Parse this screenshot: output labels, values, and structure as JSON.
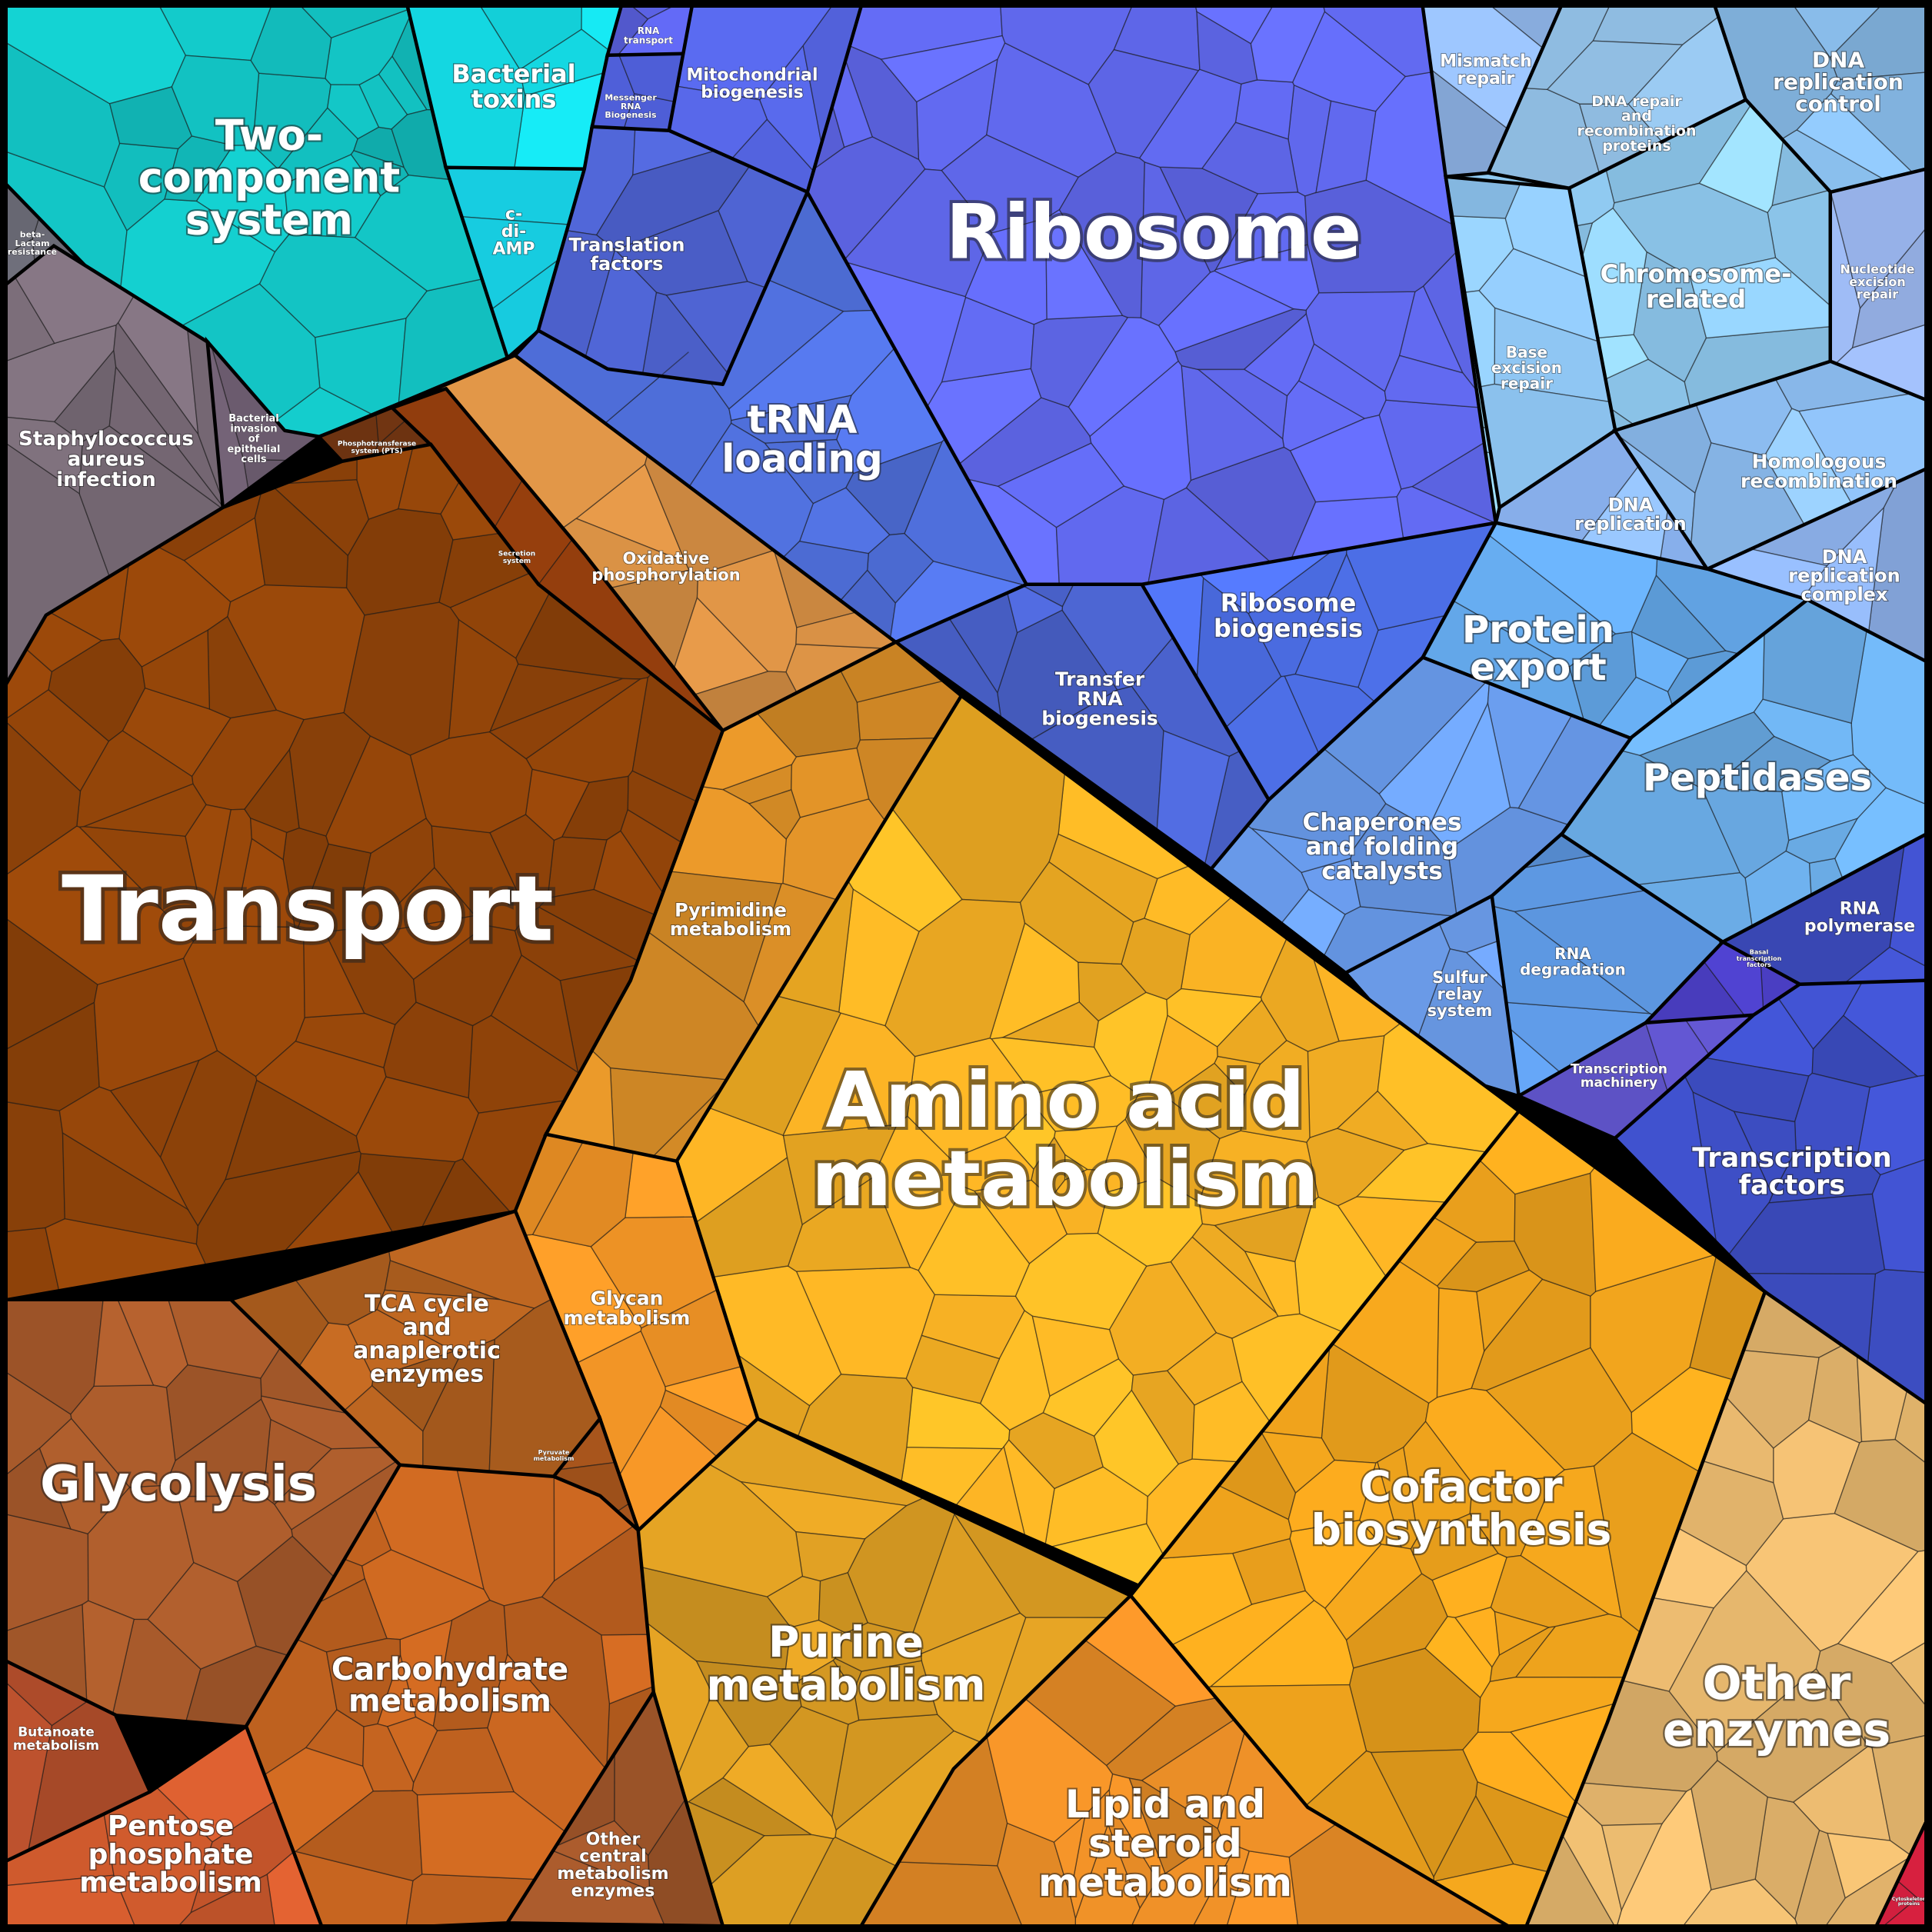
{
  "diagram": {
    "type": "voronoi-treemap",
    "regions": [
      {
        "id": "two-component",
        "label": "Two-\ncomponent\nsystem",
        "color": "#12bdbd"
      },
      {
        "id": "bacterial-toxins",
        "label": "Bacterial\ntoxins",
        "color": "#14d9e3"
      },
      {
        "id": "c-di-amp",
        "label": "c-\ndi-\nAMP",
        "color": "#16c3d6"
      },
      {
        "id": "beta-lactam",
        "label": "beta-\nLactam\nresistance",
        "color": "#6a6a75"
      },
      {
        "id": "staph",
        "label": "Staphylococcus\naureus\ninfection",
        "color": "#796b77"
      },
      {
        "id": "bact-invasion",
        "label": "Bacterial\ninvasion\nof\nepithelial\ncells",
        "color": "#736276"
      },
      {
        "id": "pts",
        "label": "Phosphotransferase\nsystem (PTS)",
        "color": "#6e3311"
      },
      {
        "id": "secretion",
        "label": "Secretion\nsystem",
        "color": "#8a3a0c"
      },
      {
        "id": "transport",
        "label": "Transport",
        "color": "#8f4309"
      },
      {
        "id": "oxphos",
        "label": "Oxidative\nphosphorylation",
        "color": "#d38d43"
      },
      {
        "id": "rna-transport",
        "label": "RNA\ntransport",
        "color": "#5a60e0"
      },
      {
        "id": "mrna-biogenesis",
        "label": "Messenger\nRNA\nBiogenesis",
        "color": "#5060dc"
      },
      {
        "id": "mito",
        "label": "Mitochondrial\nbiogenesis",
        "color": "#5565e3"
      },
      {
        "id": "translation",
        "label": "Translation\nfactors",
        "color": "#5065d6"
      },
      {
        "id": "trna-loading",
        "label": "tRNA\nloading",
        "color": "#4f6fdb"
      },
      {
        "id": "ribosome",
        "label": "Ribosome",
        "color": "#6068ec"
      },
      {
        "id": "transfer-rna",
        "label": "Transfer\nRNA\nbiogenesis",
        "color": "#4a62cc"
      },
      {
        "id": "ribo-biogenesis",
        "label": "Ribosome\nbiogenesis",
        "color": "#4d6fe8"
      },
      {
        "id": "mismatch",
        "label": "Mismatch\nrepair",
        "color": "#8eb3e6"
      },
      {
        "id": "dna-repair",
        "label": "DNA repair\nand\nrecombination\nproteins",
        "color": "#9ccdf5"
      },
      {
        "id": "dna-rep-control",
        "label": "DNA\nreplication\ncontrol",
        "color": "#86b9e6"
      },
      {
        "id": "chromosome",
        "label": "Chromosome-\nrelated",
        "color": "#93cff6"
      },
      {
        "id": "nucleotide-exc",
        "label": "Nucleotide\nexcision\nrepair",
        "color": "#a0bdf7"
      },
      {
        "id": "base-exc",
        "label": "Base\nexcision\nrepair",
        "color": "#8cc2ee"
      },
      {
        "id": "dna-replication",
        "label": "DNA\nreplication",
        "color": "#8bb4f2"
      },
      {
        "id": "homologous",
        "label": "Homologous\nrecombination",
        "color": "#8dbef2"
      },
      {
        "id": "dna-rep-complex",
        "label": "DNA\nreplication\ncomplex",
        "color": "#8fb3ee"
      },
      {
        "id": "protein-export",
        "label": "Protein\nexport",
        "color": "#61a3e3"
      },
      {
        "id": "peptidases",
        "label": "Peptidases",
        "color": "#6caee9"
      },
      {
        "id": "chaperones",
        "label": "Chaperones\nand folding\ncatalysts",
        "color": "#6b9ef0"
      },
      {
        "id": "sulfur",
        "label": "Sulfur\nrelay\nsystem",
        "color": "#6fa1f2"
      },
      {
        "id": "rna-degradation",
        "label": "RNA\ndegradation",
        "color": "#5d98e2"
      },
      {
        "id": "rna-polymerase",
        "label": "RNA\npolymerase",
        "color": "#3f4fc6"
      },
      {
        "id": "basal-tf",
        "label": "Basal\ntranscription\nfactors",
        "color": "#4a3ec2"
      },
      {
        "id": "tx-machinery",
        "label": "Transcription\nmachinery",
        "color": "#5a4fbf"
      },
      {
        "id": "tx-factors",
        "label": "Transcription\nfactors",
        "color": "#3d4ec4"
      },
      {
        "id": "pyrimidine",
        "label": "Pyrimidine\nmetabolism",
        "color": "#d58b26"
      },
      {
        "id": "amino-acid",
        "label": "Amino acid\nmetabolism",
        "color": "#f7b124"
      },
      {
        "id": "glycan",
        "label": "Glycan\nmetabolism",
        "color": "#ee9225"
      },
      {
        "id": "tca",
        "label": "TCA cycle\nand\nanaplerotic\nenzymes",
        "color": "#b3611f"
      },
      {
        "id": "pyruvate",
        "label": "Pyruvate\nmetabolism",
        "color": "#a8551c"
      },
      {
        "id": "glycolysis",
        "label": "Glycolysis",
        "color": "#a4582a"
      },
      {
        "id": "carbohydrate",
        "label": "Carbohydrate\nmetabolism",
        "color": "#c1621f"
      },
      {
        "id": "butanoate",
        "label": "Butanoate\nmetabolism",
        "color": "#b54f2c"
      },
      {
        "id": "pentose",
        "label": "Pentose\nphosphate\nmetabolism",
        "color": "#cf5a2d"
      },
      {
        "id": "other-central",
        "label": "Other\ncentral\nmetabolism\nenzymes",
        "color": "#9d5429"
      },
      {
        "id": "purine",
        "label": "Purine\nmetabolism",
        "color": "#d79a22"
      },
      {
        "id": "cofactor",
        "label": "Cofactor\nbiosynthesis",
        "color": "#eca11c"
      },
      {
        "id": "lipid",
        "label": "Lipid and\nsteroid\nmetabolism",
        "color": "#e58b26"
      },
      {
        "id": "other-enzymes",
        "label": "Other\nenzymes",
        "color": "#e5b66d"
      },
      {
        "id": "cytoskeleton",
        "label": "Cytoskeleton\nproteins",
        "color": "#d6203f"
      }
    ]
  }
}
